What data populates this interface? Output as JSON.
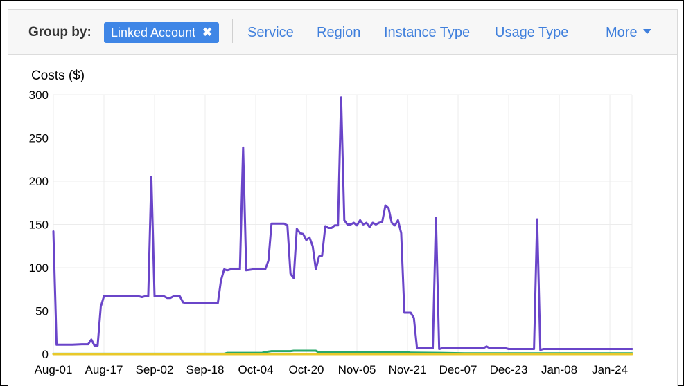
{
  "toolbar": {
    "group_by_label": "Group by:",
    "chip_label": "Linked Account",
    "chip_close_glyph": "✖",
    "options": [
      "Service",
      "Region",
      "Instance Type",
      "Usage Type"
    ],
    "more_label": "More",
    "accent_color": "#3f86e6",
    "link_color": "#3f7fdc"
  },
  "chart_data": {
    "type": "line",
    "ylabel": "Costs ($)",
    "ylim": [
      0,
      300
    ],
    "yticks": [
      0,
      50,
      100,
      150,
      200,
      250,
      300
    ],
    "xlim": [
      0,
      183
    ],
    "xticks": [
      {
        "label": "Aug-01",
        "x": 0
      },
      {
        "label": "Aug-17",
        "x": 16
      },
      {
        "label": "Sep-02",
        "x": 32
      },
      {
        "label": "Sep-18",
        "x": 48
      },
      {
        "label": "Oct-04",
        "x": 64
      },
      {
        "label": "Oct-20",
        "x": 80
      },
      {
        "label": "Nov-05",
        "x": 96
      },
      {
        "label": "Nov-21",
        "x": 112
      },
      {
        "label": "Dec-07",
        "x": 128
      },
      {
        "label": "Dec-23",
        "x": 144
      },
      {
        "label": "Jan-08",
        "x": 160
      },
      {
        "label": "Jan-24",
        "x": 176
      }
    ],
    "grid": true,
    "series": [
      {
        "color": "#6a45c9",
        "points": [
          [
            0,
            142
          ],
          [
            1,
            11
          ],
          [
            3,
            11
          ],
          [
            6,
            11
          ],
          [
            9,
            11.5
          ],
          [
            11,
            11.5
          ],
          [
            12,
            17
          ],
          [
            13,
            10
          ],
          [
            14,
            10
          ],
          [
            15,
            55
          ],
          [
            16,
            67
          ],
          [
            20,
            67
          ],
          [
            25,
            67
          ],
          [
            27,
            67
          ],
          [
            28,
            66
          ],
          [
            29,
            67
          ],
          [
            30,
            67
          ],
          [
            31,
            205
          ],
          [
            32,
            67
          ],
          [
            35,
            67
          ],
          [
            36,
            65
          ],
          [
            37,
            65
          ],
          [
            38,
            67
          ],
          [
            40,
            67
          ],
          [
            41,
            60
          ],
          [
            42,
            59
          ],
          [
            48,
            59
          ],
          [
            52,
            59
          ],
          [
            53,
            85
          ],
          [
            54,
            98
          ],
          [
            55,
            97
          ],
          [
            56,
            98
          ],
          [
            59,
            98
          ],
          [
            60,
            239
          ],
          [
            61,
            97
          ],
          [
            63,
            98
          ],
          [
            67,
            98
          ],
          [
            68,
            108
          ],
          [
            69,
            151
          ],
          [
            71,
            151
          ],
          [
            73,
            151
          ],
          [
            74,
            149
          ],
          [
            75,
            93
          ],
          [
            76,
            88
          ],
          [
            77,
            145
          ],
          [
            78,
            140
          ],
          [
            79,
            139
          ],
          [
            80,
            132
          ],
          [
            81,
            135
          ],
          [
            82,
            125
          ],
          [
            83,
            98
          ],
          [
            84,
            113
          ],
          [
            85,
            114
          ],
          [
            86,
            148
          ],
          [
            87,
            146
          ],
          [
            88,
            146
          ],
          [
            89,
            149
          ],
          [
            90,
            149
          ],
          [
            91,
            297
          ],
          [
            92,
            155
          ],
          [
            93,
            150
          ],
          [
            94,
            150
          ],
          [
            95,
            152
          ],
          [
            96,
            149
          ],
          [
            97,
            155
          ],
          [
            98,
            150
          ],
          [
            99,
            152
          ],
          [
            100,
            147
          ],
          [
            101,
            152
          ],
          [
            102,
            150
          ],
          [
            103,
            152
          ],
          [
            104,
            153
          ],
          [
            105,
            172
          ],
          [
            106,
            169
          ],
          [
            107,
            152
          ],
          [
            108,
            149
          ],
          [
            109,
            155
          ],
          [
            110,
            140
          ],
          [
            111,
            48
          ],
          [
            113,
            48
          ],
          [
            114,
            42
          ],
          [
            115,
            7
          ],
          [
            120,
            7
          ],
          [
            121,
            158
          ],
          [
            122,
            6
          ],
          [
            123,
            7
          ],
          [
            130,
            7
          ],
          [
            136,
            7
          ],
          [
            137,
            9
          ],
          [
            138,
            7
          ],
          [
            143,
            7
          ],
          [
            144,
            6
          ],
          [
            146,
            6
          ],
          [
            152,
            6
          ],
          [
            153,
            156
          ],
          [
            154,
            5
          ],
          [
            155,
            6
          ],
          [
            162,
            6
          ],
          [
            170,
            6
          ],
          [
            183,
            6
          ]
        ]
      },
      {
        "color": "#2aa86a",
        "points": [
          [
            0,
            0.5
          ],
          [
            54,
            0.5
          ],
          [
            55,
            1.5
          ],
          [
            66,
            1.5
          ],
          [
            67,
            2.5
          ],
          [
            69,
            3.5
          ],
          [
            75,
            3.5
          ],
          [
            76,
            4
          ],
          [
            83,
            4
          ],
          [
            84,
            2
          ],
          [
            90,
            2
          ],
          [
            104,
            2
          ],
          [
            105,
            2.5
          ],
          [
            112,
            2.5
          ],
          [
            113,
            1.8
          ],
          [
            122,
            1.5
          ],
          [
            130,
            1
          ],
          [
            160,
            1
          ],
          [
            183,
            1
          ]
        ]
      },
      {
        "color": "#e8c82a",
        "points": [
          [
            0,
            0
          ],
          [
            183,
            0
          ]
        ]
      }
    ]
  }
}
